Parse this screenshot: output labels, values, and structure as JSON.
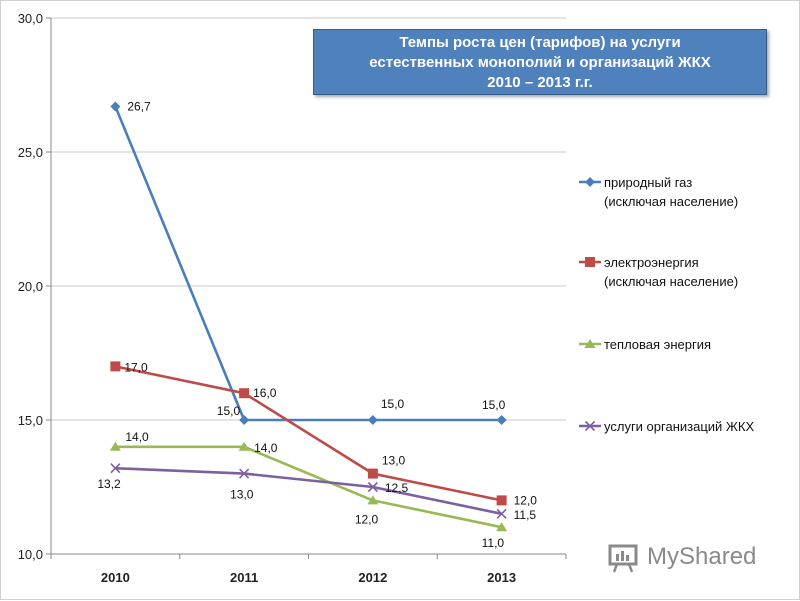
{
  "chart_data": {
    "type": "line",
    "title_lines": [
      "Темпы роста цен (тарифов) на услуги",
      "естественных монополий и организаций ЖКХ",
      "2010 – 2013 г.г."
    ],
    "categories": [
      "2010",
      "2011",
      "2012",
      "2013"
    ],
    "y_ticks": [
      "10,0",
      "15,0",
      "20,0",
      "25,0",
      "30,0"
    ],
    "ylim": [
      10,
      30
    ],
    "grid": true,
    "series": [
      {
        "name": "природный газ (исключая население)",
        "legend_lines": [
          "природный газ",
          "(исключая население)"
        ],
        "values": [
          26.7,
          15.0,
          15.0,
          15.0
        ],
        "labels": [
          "26,7",
          "15,0",
          "15,0",
          "15,0"
        ],
        "color": "#4a7ebb",
        "marker": "diamond"
      },
      {
        "name": "электроэнергия (исключая население)",
        "legend_lines": [
          "электроэнергия",
          "(исключая население)"
        ],
        "values": [
          17.0,
          16.0,
          13.0,
          12.0
        ],
        "labels": [
          "17,0",
          "16,0",
          "13,0",
          "12,0"
        ],
        "color": "#be4b48",
        "marker": "square"
      },
      {
        "name": "тепловая энергия",
        "legend_lines": [
          "тепловая энергия"
        ],
        "values": [
          14.0,
          14.0,
          12.0,
          11.0
        ],
        "labels": [
          "14,0",
          "14,0",
          "12,0",
          "11,0"
        ],
        "color": "#98b954",
        "marker": "triangle"
      },
      {
        "name": "услуги организаций ЖКХ",
        "legend_lines": [
          "услуги организаций  ЖКХ"
        ],
        "values": [
          13.2,
          13.0,
          12.5,
          11.5
        ],
        "labels": [
          "13,2",
          "13,0",
          "12,5",
          "11,5"
        ],
        "color": "#7d60a0",
        "marker": "x"
      }
    ]
  },
  "watermark": {
    "text": "MyShared"
  }
}
